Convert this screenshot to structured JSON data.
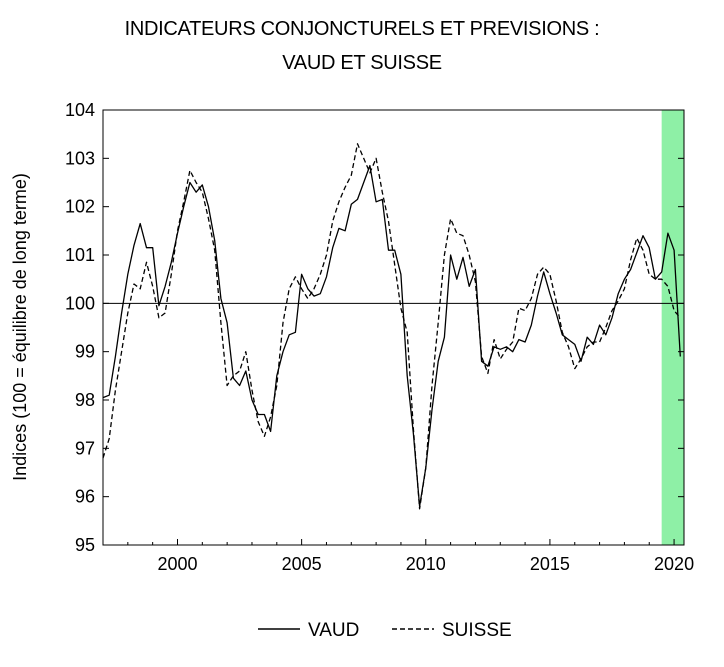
{
  "chart_data": {
    "type": "line",
    "title_line1": "INDICATEURS CONJONCTURELS ET PREVISIONS :",
    "title_line2": "VAUD ET SUISSE",
    "ylabel": "Indices (100 = équilibre de long terme)",
    "xlabel": "",
    "xlim": [
      1997.0,
      2020.4
    ],
    "ylim": [
      95,
      104
    ],
    "x_ticks": [
      {
        "value": 2000,
        "label": "2000"
      },
      {
        "value": 2005,
        "label": "2005"
      },
      {
        "value": 2010,
        "label": "2010"
      },
      {
        "value": 2015,
        "label": "2015"
      },
      {
        "value": 2020,
        "label": "2020"
      }
    ],
    "y_ticks": [
      {
        "value": 95,
        "label": "95"
      },
      {
        "value": 96,
        "label": "96"
      },
      {
        "value": 97,
        "label": "97"
      },
      {
        "value": 98,
        "label": "98"
      },
      {
        "value": 99,
        "label": "99"
      },
      {
        "value": 100,
        "label": "100"
      },
      {
        "value": 101,
        "label": "101"
      },
      {
        "value": 102,
        "label": "102"
      },
      {
        "value": 103,
        "label": "103"
      },
      {
        "value": 104,
        "label": "104"
      }
    ],
    "reference_line": 100,
    "forecast_band": {
      "from": 2019.5,
      "to": 2020.4,
      "color": "#8ef0a6"
    },
    "grid": false,
    "legend_position": "bottom",
    "series": [
      {
        "name": "VAUD",
        "style": "solid",
        "color": "#000000",
        "x": [
          1997.0,
          1997.25,
          1997.5,
          1997.75,
          1998.0,
          1998.25,
          1998.5,
          1998.75,
          1999.0,
          1999.25,
          1999.5,
          1999.75,
          2000.0,
          2000.25,
          2000.5,
          2000.75,
          2001.0,
          2001.25,
          2001.5,
          2001.75,
          2002.0,
          2002.25,
          2002.5,
          2002.75,
          2003.0,
          2003.25,
          2003.5,
          2003.75,
          2004.0,
          2004.25,
          2004.5,
          2004.75,
          2005.0,
          2005.25,
          2005.5,
          2005.75,
          2006.0,
          2006.25,
          2006.5,
          2006.75,
          2007.0,
          2007.25,
          2007.5,
          2007.75,
          2008.0,
          2008.25,
          2008.5,
          2008.75,
          2009.0,
          2009.25,
          2009.5,
          2009.75,
          2010.0,
          2010.25,
          2010.5,
          2010.75,
          2011.0,
          2011.25,
          2011.5,
          2011.75,
          2012.0,
          2012.25,
          2012.5,
          2012.75,
          2013.0,
          2013.25,
          2013.5,
          2013.75,
          2014.0,
          2014.25,
          2014.5,
          2014.75,
          2015.0,
          2015.25,
          2015.5,
          2015.75,
          2016.0,
          2016.25,
          2016.5,
          2016.75,
          2017.0,
          2017.25,
          2017.5,
          2017.75,
          2018.0,
          2018.25,
          2018.5,
          2018.75,
          2019.0,
          2019.25,
          2019.5,
          2019.75,
          2020.0,
          2020.25
        ],
        "values": [
          98.05,
          98.1,
          98.9,
          99.8,
          100.6,
          101.2,
          101.65,
          101.15,
          101.15,
          99.95,
          100.35,
          100.85,
          101.45,
          102.0,
          102.5,
          102.3,
          102.45,
          102.0,
          101.3,
          100.1,
          99.6,
          98.45,
          98.3,
          98.6,
          98.0,
          97.7,
          97.7,
          97.35,
          98.5,
          99.0,
          99.35,
          99.4,
          100.6,
          100.3,
          100.15,
          100.2,
          100.55,
          101.15,
          101.55,
          101.5,
          102.05,
          102.15,
          102.5,
          102.85,
          102.1,
          102.15,
          101.1,
          101.1,
          100.6,
          98.5,
          97.3,
          95.8,
          96.6,
          97.8,
          98.8,
          99.3,
          101.0,
          100.5,
          100.95,
          100.35,
          100.7,
          98.8,
          98.7,
          99.1,
          99.05,
          99.1,
          99.0,
          99.25,
          99.2,
          99.55,
          100.15,
          100.65,
          100.2,
          99.8,
          99.35,
          99.25,
          99.15,
          98.8,
          99.3,
          99.15,
          99.55,
          99.35,
          99.7,
          100.2,
          100.5,
          100.7,
          101.05,
          101.4,
          101.15,
          100.5,
          100.65,
          101.45,
          101.1,
          98.9
        ]
      },
      {
        "name": "SUISSE",
        "style": "dashed",
        "color": "#000000",
        "x": [
          1997.0,
          1997.25,
          1997.5,
          1997.75,
          1998.0,
          1998.25,
          1998.5,
          1998.75,
          1999.0,
          1999.25,
          1999.5,
          1999.75,
          2000.0,
          2000.25,
          2000.5,
          2000.75,
          2001.0,
          2001.25,
          2001.5,
          2001.75,
          2002.0,
          2002.25,
          2002.5,
          2002.75,
          2003.0,
          2003.25,
          2003.5,
          2003.75,
          2004.0,
          2004.25,
          2004.5,
          2004.75,
          2005.0,
          2005.25,
          2005.5,
          2005.75,
          2006.0,
          2006.25,
          2006.5,
          2006.75,
          2007.0,
          2007.25,
          2007.5,
          2007.75,
          2008.0,
          2008.25,
          2008.5,
          2008.75,
          2009.0,
          2009.25,
          2009.5,
          2009.75,
          2010.0,
          2010.25,
          2010.5,
          2010.75,
          2011.0,
          2011.25,
          2011.5,
          2011.75,
          2012.0,
          2012.25,
          2012.5,
          2012.75,
          2013.0,
          2013.25,
          2013.5,
          2013.75,
          2014.0,
          2014.25,
          2014.5,
          2014.75,
          2015.0,
          2015.25,
          2015.5,
          2015.75,
          2016.0,
          2016.25,
          2016.5,
          2016.75,
          2017.0,
          2017.25,
          2017.5,
          2017.75,
          2018.0,
          2018.25,
          2018.5,
          2018.75,
          2019.0,
          2019.25,
          2019.5,
          2019.75,
          2020.0,
          2020.25
        ],
        "values": [
          96.8,
          97.2,
          98.2,
          99.0,
          99.8,
          100.4,
          100.3,
          100.85,
          100.35,
          99.7,
          99.8,
          100.6,
          101.5,
          102.1,
          102.75,
          102.5,
          102.3,
          101.75,
          101.1,
          99.6,
          98.3,
          98.5,
          98.6,
          99.0,
          98.2,
          97.55,
          97.25,
          97.65,
          98.3,
          99.6,
          100.3,
          100.55,
          100.3,
          100.1,
          100.3,
          100.6,
          101.0,
          101.7,
          102.1,
          102.4,
          102.65,
          103.3,
          103.0,
          102.7,
          103.0,
          102.3,
          101.7,
          100.8,
          99.9,
          99.4,
          97.4,
          95.75,
          96.6,
          98.3,
          99.6,
          101.0,
          101.75,
          101.45,
          101.4,
          101.0,
          100.45,
          98.9,
          98.55,
          99.25,
          98.85,
          99.05,
          99.2,
          99.9,
          99.85,
          100.1,
          100.6,
          100.75,
          100.6,
          100.05,
          99.4,
          99.1,
          98.65,
          98.85,
          99.1,
          99.2,
          99.2,
          99.5,
          99.85,
          100.05,
          100.3,
          100.9,
          101.35,
          101.1,
          100.6,
          100.5,
          100.5,
          100.35,
          99.85,
          99.7
        ]
      }
    ]
  }
}
